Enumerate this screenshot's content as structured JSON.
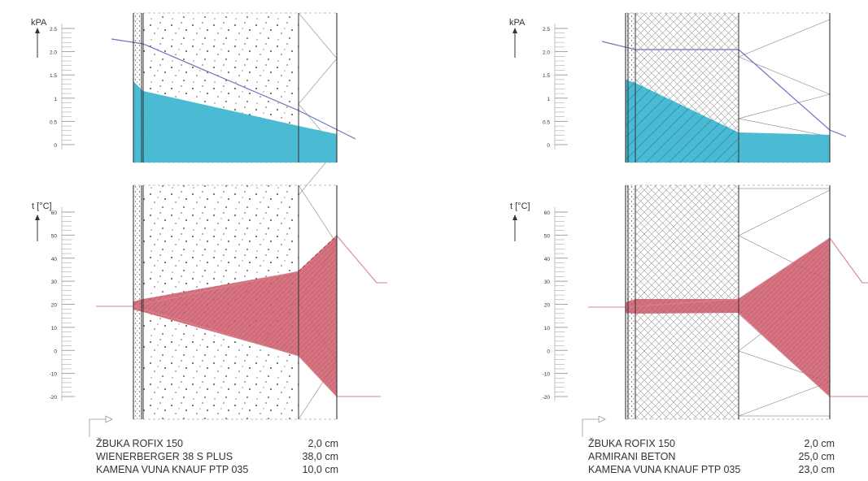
{
  "colors": {
    "vapour_fill": "#41b6d1",
    "temperature_fill": "#cf6070",
    "temperature_line": "#d28590",
    "pressure_line": "#6f74c2",
    "wall_line": "#333333",
    "scale_line": "#9a9a9a",
    "text": "#333333"
  },
  "scales": {
    "pressure": {
      "label": "kPA",
      "ticks": [
        "2.5",
        "2.0",
        "1.5",
        "1",
        "0.5",
        "0"
      ]
    },
    "temperature": {
      "label": "t [°C]",
      "ticks": [
        "60",
        "50",
        "40",
        "30",
        "20",
        "10",
        "0",
        "-10",
        "-20"
      ]
    }
  },
  "icons": {
    "axis_arrow": "up-arrow-icon",
    "section_pointer": "arrow-pointer-icon"
  },
  "sections": [
    {
      "id": "left",
      "core_pattern": "dots",
      "layers": [
        {
          "name": "ŽBUKA ROFIX 150",
          "thickness": "2,0 cm"
        },
        {
          "name": "WIENERBERGER 38 S PLUS",
          "thickness": "38,0 cm"
        },
        {
          "name": "KAMENA VUNA KNAUF PTP 035",
          "thickness": "10,0 cm"
        }
      ]
    },
    {
      "id": "right",
      "core_pattern": "crosshatch",
      "layers": [
        {
          "name": "ŽBUKA ROFIX 150",
          "thickness": "2,0 cm"
        },
        {
          "name": "ARMIRANI BETON",
          "thickness": "25,0 cm"
        },
        {
          "name": "KAMENA VUNA KNAUF PTP 035",
          "thickness": "23,0 cm"
        }
      ]
    }
  ]
}
